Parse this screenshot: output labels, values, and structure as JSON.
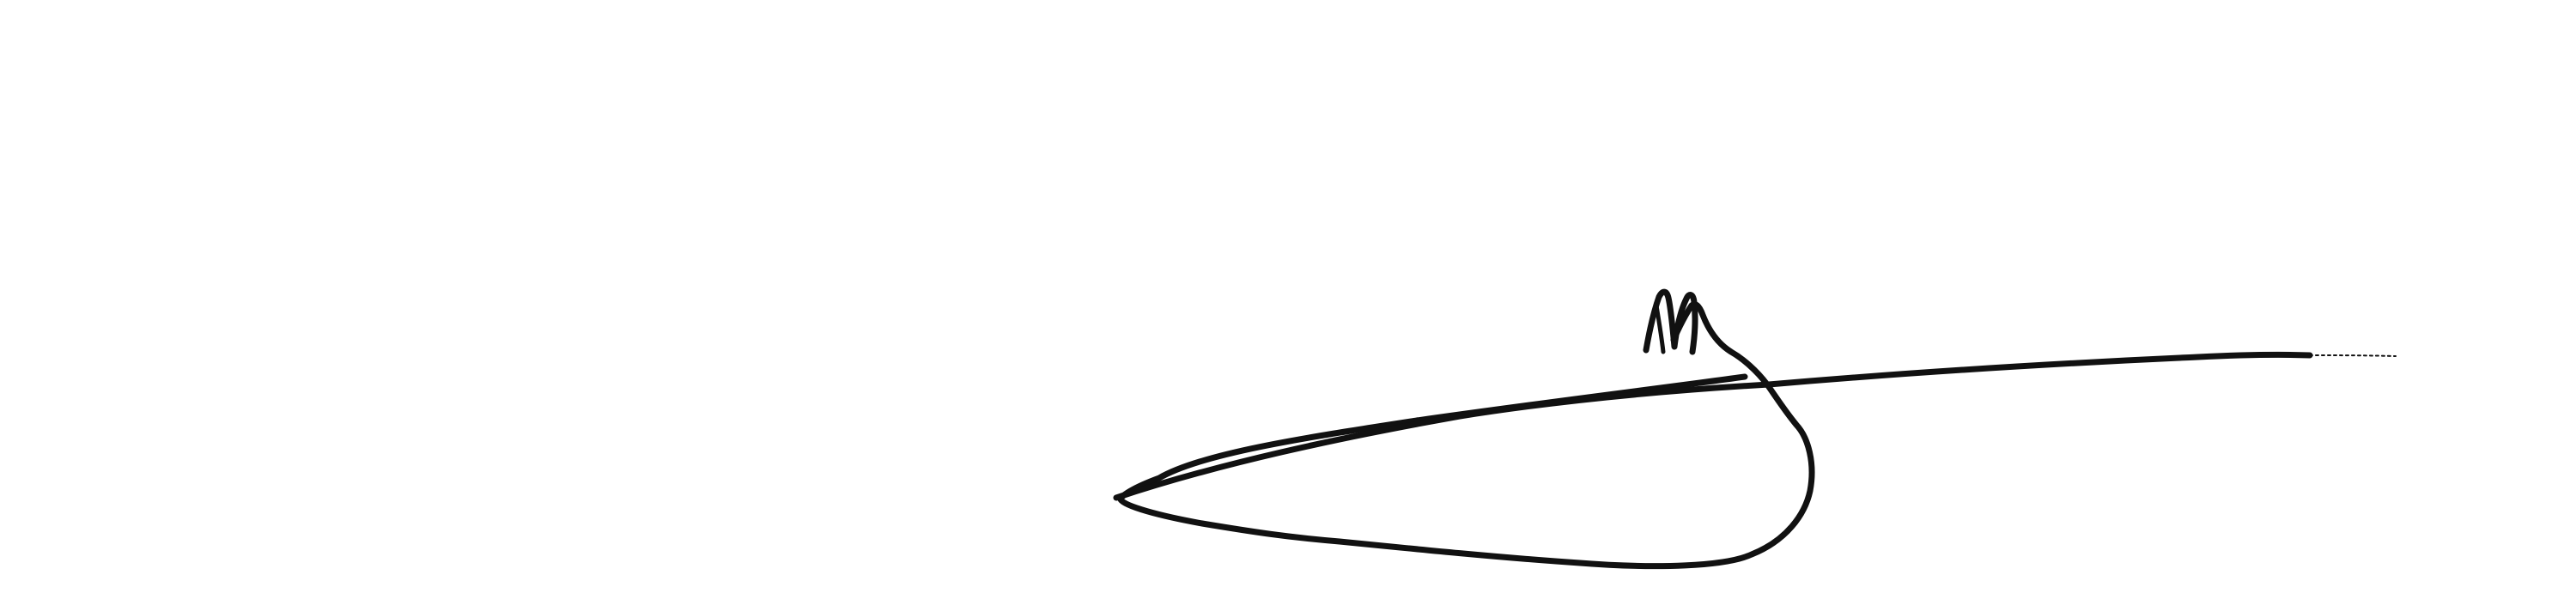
{
  "background_color": "#ffffff",
  "ink_color": "#111111",
  "signature": {
    "kind": "handwritten signature"
  }
}
